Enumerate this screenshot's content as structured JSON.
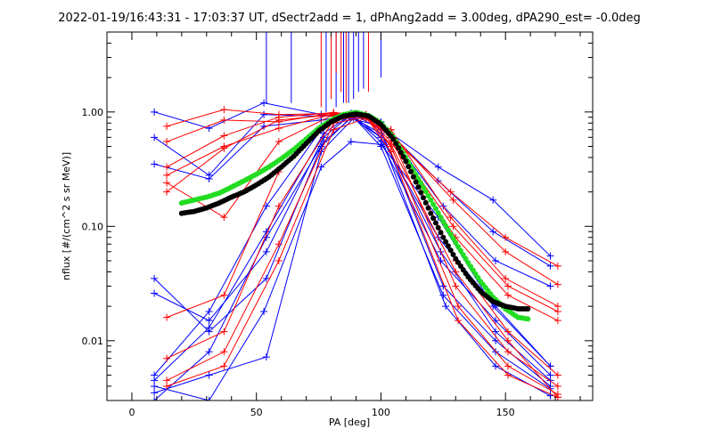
{
  "chart_data": {
    "type": "line",
    "title": "2022-01-19/16:43:31 - 17:03:37 UT, dSectr2add = 1, dPhAng2add = 3.00deg, dPA290_est=  -0.0deg",
    "xlabel": "PA [deg]",
    "ylabel": "nflux [#/(cm^2 s sr MeV)]",
    "xlim": [
      -10,
      185
    ],
    "ylim": [
      0.003,
      5.0
    ],
    "yscale": "log",
    "xticks": [
      0,
      50,
      100,
      150
    ],
    "xtick_labels": [
      "0",
      "50",
      "100",
      "150"
    ],
    "yticks": [
      0.01,
      0.1,
      1.0
    ],
    "ytick_labels": [
      "0.01",
      "0.10",
      "1.00"
    ],
    "grid": false,
    "legend": "none",
    "colors": {
      "blue": "#0000ff",
      "red": "#ff0000",
      "green": "#22dd22",
      "black": "#000000"
    },
    "series": [
      {
        "color": "blue",
        "marker": "plus",
        "x": [
          9,
          31,
          53,
          76,
          86,
          100,
          123,
          145,
          168
        ],
        "y": [
          1.0,
          0.72,
          1.2,
          0.95,
          0.9,
          0.75,
          0.33,
          0.17,
          0.055
        ]
      },
      {
        "color": "blue",
        "marker": "plus",
        "x": [
          9,
          31,
          53,
          76,
          88,
          100,
          123,
          145,
          168
        ],
        "y": [
          0.6,
          0.28,
          0.95,
          0.92,
          0.95,
          0.78,
          0.25,
          0.09,
          0.045
        ]
      },
      {
        "color": "blue",
        "marker": "plus",
        "x": [
          9,
          31,
          53,
          76,
          88,
          100,
          125,
          146,
          168
        ],
        "y": [
          0.35,
          0.26,
          0.75,
          0.85,
          0.92,
          0.82,
          0.15,
          0.05,
          0.03
        ]
      },
      {
        "color": "blue",
        "marker": "plus",
        "x": [
          9,
          31,
          54,
          76,
          88,
          100,
          123,
          146,
          168
        ],
        "y": [
          0.035,
          0.012,
          0.035,
          0.5,
          0.9,
          0.6,
          0.08,
          0.02,
          0.006
        ]
      },
      {
        "color": "blue",
        "marker": "plus",
        "x": [
          9,
          31,
          54,
          77,
          88,
          100,
          124,
          146,
          168
        ],
        "y": [
          0.026,
          0.015,
          0.06,
          0.6,
          0.95,
          0.55,
          0.05,
          0.015,
          0.005
        ]
      },
      {
        "color": "blue",
        "marker": "plus",
        "x": [
          9,
          31,
          54,
          76,
          88,
          100,
          125,
          146,
          168
        ],
        "y": [
          0.005,
          0.018,
          0.15,
          0.7,
          0.98,
          0.7,
          0.03,
          0.01,
          0.004
        ]
      },
      {
        "color": "blue",
        "marker": "plus",
        "x": [
          9,
          31,
          54,
          77,
          88,
          100,
          125,
          146,
          168
        ],
        "y": [
          0.0045,
          0.013,
          0.09,
          0.65,
          0.95,
          0.5,
          0.025,
          0.008,
          0.0038
        ]
      },
      {
        "color": "blue",
        "marker": "plus",
        "x": [
          9,
          31,
          54,
          77,
          89,
          100,
          126,
          146,
          168
        ],
        "y": [
          0.003,
          0.008,
          0.08,
          0.55,
          0.92,
          0.6,
          0.02,
          0.006,
          0.0033
        ]
      },
      {
        "color": "blue",
        "marker": "plus",
        "x": [
          9,
          31,
          54,
          76,
          89,
          100,
          124,
          146,
          168
        ],
        "y": [
          0.0035,
          0.005,
          0.0072,
          0.45,
          0.88,
          0.65,
          0.06,
          0.012,
          0.0045
        ]
      },
      {
        "color": "blue",
        "marker": "plus",
        "x": [
          9,
          31,
          53,
          76,
          88,
          100,
          123,
          145,
          168
        ],
        "y": [
          0.004,
          0.003,
          0.018,
          0.33,
          0.55,
          0.52,
          0.12,
          0.02,
          0.006
        ]
      },
      {
        "color": "red",
        "marker": "plus",
        "x": [
          14,
          37,
          59,
          81,
          94,
          104,
          128,
          150,
          171
        ],
        "y": [
          0.75,
          1.05,
          0.95,
          0.97,
          0.95,
          0.6,
          0.2,
          0.08,
          0.045
        ]
      },
      {
        "color": "red",
        "marker": "plus",
        "x": [
          14,
          37,
          59,
          81,
          94,
          104,
          129,
          150,
          171
        ],
        "y": [
          0.55,
          0.85,
          0.82,
          0.98,
          0.92,
          0.65,
          0.17,
          0.06,
          0.031
        ]
      },
      {
        "color": "red",
        "marker": "plus",
        "x": [
          14,
          37,
          59,
          81,
          94,
          104,
          128,
          150,
          171
        ],
        "y": [
          0.33,
          0.62,
          0.9,
          0.99,
          0.93,
          0.7,
          0.12,
          0.035,
          0.02
        ]
      },
      {
        "color": "red",
        "marker": "plus",
        "x": [
          14,
          37,
          59,
          81,
          94,
          104,
          129,
          151,
          171
        ],
        "y": [
          0.28,
          0.5,
          0.72,
          0.96,
          0.9,
          0.6,
          0.1,
          0.03,
          0.018
        ]
      },
      {
        "color": "red",
        "marker": "plus",
        "x": [
          14,
          37,
          59,
          81,
          94,
          104,
          130,
          151,
          171
        ],
        "y": [
          0.2,
          0.48,
          0.85,
          0.95,
          0.92,
          0.55,
          0.08,
          0.025,
          0.015
        ]
      },
      {
        "color": "red",
        "marker": "plus",
        "x": [
          14,
          37,
          59,
          81,
          94,
          104,
          130,
          151,
          171
        ],
        "y": [
          0.24,
          0.12,
          0.55,
          0.95,
          0.93,
          0.7,
          0.05,
          0.012,
          0.005
        ]
      },
      {
        "color": "red",
        "marker": "plus",
        "x": [
          14,
          37,
          59,
          81,
          94,
          104,
          130,
          151,
          171
        ],
        "y": [
          0.016,
          0.025,
          0.3,
          0.92,
          0.95,
          0.62,
          0.03,
          0.008,
          0.004
        ]
      },
      {
        "color": "red",
        "marker": "plus",
        "x": [
          14,
          37,
          59,
          81,
          94,
          104,
          131,
          151,
          171
        ],
        "y": [
          0.007,
          0.012,
          0.15,
          0.85,
          0.92,
          0.5,
          0.02,
          0.006,
          0.0034
        ]
      },
      {
        "color": "red",
        "marker": "plus",
        "x": [
          14,
          37,
          59,
          81,
          94,
          104,
          131,
          151,
          171
        ],
        "y": [
          0.0045,
          0.008,
          0.07,
          0.8,
          0.9,
          0.45,
          0.015,
          0.005,
          0.0032
        ]
      },
      {
        "color": "red",
        "marker": "plus",
        "x": [
          14,
          37,
          59,
          81,
          94,
          104,
          130,
          151,
          171
        ],
        "y": [
          0.004,
          0.006,
          0.05,
          0.7,
          0.88,
          0.52,
          0.04,
          0.01,
          0.0032
        ]
      },
      {
        "color": "green",
        "marker": "dot",
        "x": [
          20,
          25,
          30,
          35,
          40,
          45,
          50,
          55,
          60,
          65,
          70,
          75,
          80,
          85,
          90,
          95,
          100,
          105,
          110,
          115,
          120,
          125,
          130,
          135,
          140,
          145,
          150,
          155,
          159
        ],
        "y": [
          0.16,
          0.17,
          0.18,
          0.195,
          0.22,
          0.25,
          0.285,
          0.33,
          0.39,
          0.47,
          0.58,
          0.72,
          0.85,
          0.95,
          0.99,
          0.93,
          0.8,
          0.6,
          0.4,
          0.26,
          0.17,
          0.11,
          0.072,
          0.048,
          0.033,
          0.024,
          0.019,
          0.016,
          0.0155
        ]
      },
      {
        "color": "black",
        "marker": "dot",
        "x": [
          20,
          25,
          30,
          35,
          40,
          45,
          50,
          55,
          60,
          65,
          70,
          75,
          80,
          85,
          90,
          95,
          100,
          105,
          110,
          115,
          120,
          125,
          130,
          135,
          140,
          145,
          150,
          155,
          159
        ],
        "y": [
          0.13,
          0.135,
          0.145,
          0.16,
          0.18,
          0.2,
          0.23,
          0.27,
          0.33,
          0.41,
          0.53,
          0.68,
          0.82,
          0.92,
          0.96,
          0.92,
          0.78,
          0.58,
          0.37,
          0.22,
          0.13,
          0.08,
          0.052,
          0.036,
          0.027,
          0.022,
          0.02,
          0.019,
          0.019
        ]
      }
    ],
    "spikes": [
      {
        "color": "blue",
        "x": [
          54,
          64,
          78,
          82,
          85,
          87,
          89,
          91,
          93,
          100
        ],
        "y_bottom": [
          1.2,
          1.2,
          1.0,
          1.1,
          1.2,
          1.2,
          1.3,
          1.5,
          1.6,
          2.0
        ]
      },
      {
        "color": "red",
        "x": [
          76,
          80,
          82,
          84,
          86,
          95
        ],
        "y_bottom": [
          1.1,
          1.3,
          2.2,
          1.5,
          1.2,
          1.5
        ]
      }
    ]
  }
}
